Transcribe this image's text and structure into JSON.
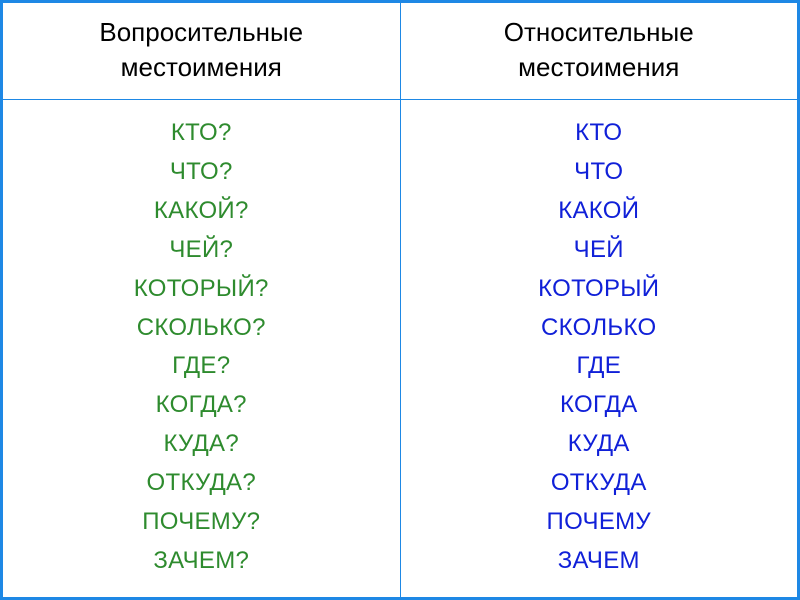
{
  "table": {
    "border_color": "#1e88e5",
    "divider_color": "#1e88e5",
    "background": "#ffffff",
    "header_fontsize": 26,
    "header_color": "#000000",
    "item_fontsize": 24,
    "left_color": "#2e8b2e",
    "right_color": "#1020d8",
    "columns": [
      {
        "header_line1": "Вопросительные",
        "header_line2": "местоимения",
        "items": [
          "КТО?",
          "ЧТО?",
          "КАКОЙ?",
          "ЧЕЙ?",
          "КОТОРЫЙ?",
          "СКОЛЬКО?",
          "ГДЕ?",
          "КОГДА?",
          "КУДА?",
          "ОТКУДА?",
          "ПОЧЕМУ?",
          "ЗАЧЕМ?"
        ]
      },
      {
        "header_line1": "Относительные",
        "header_line2": "местоимения",
        "items": [
          "КТО",
          "ЧТО",
          "КАКОЙ",
          "ЧЕЙ",
          "КОТОРЫЙ",
          "СКОЛЬКО",
          "ГДЕ",
          "КОГДА",
          "КУДА",
          "ОТКУДА",
          "ПОЧЕМУ",
          "ЗАЧЕМ"
        ]
      }
    ]
  }
}
